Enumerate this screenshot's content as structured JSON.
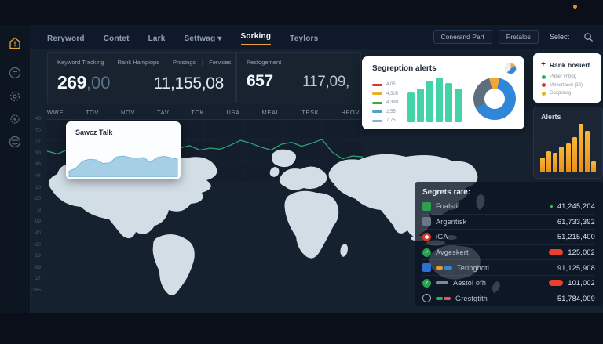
{
  "colors": {
    "accent": "#e8a33b",
    "teal": "#43d3a7",
    "donut_blue": "#2e87d8",
    "donut_gray": "#5f6e7e",
    "donut_orange": "#f2a53a",
    "alert_bar_top": "#f8b83a",
    "alert_bar_bottom": "#e88f16",
    "line_green": "#2ea176",
    "area_fill": "#a5cfe4",
    "area_line": "#7fb9d4",
    "map": "#d9e4ec",
    "red_badge": "#e8402a"
  },
  "topnav": {
    "items": [
      {
        "label": "Reryword"
      },
      {
        "label": "Contet"
      },
      {
        "label": "Lark"
      },
      {
        "label": "Settwag",
        "caret": true
      },
      {
        "label": "Sorking",
        "active": true
      },
      {
        "label": "Teylors"
      }
    ],
    "buttons": [
      "Conerand Part",
      "Pretalos"
    ],
    "select_label": "Select"
  },
  "sidebar": {
    "icons": [
      "home-alert-icon",
      "list-circle-icon",
      "gear-icon",
      "gear-star-icon",
      "globe-icon"
    ]
  },
  "kpi_primary": {
    "tabs": [
      "Keyword Tracking",
      "Rank Hampiops",
      "Prosings",
      "Fervices"
    ],
    "value_main_int": "269",
    "value_main_dec": ",00",
    "value_secondary": "11,155,08"
  },
  "kpi_secondary": {
    "title": "Pesfogement",
    "value_main": "657",
    "value_secondary": "117,09,"
  },
  "region_tabs": [
    "WWE",
    "TOV",
    "NOV",
    "TAV",
    "TOK",
    "USA",
    "MEAL",
    "TESK",
    "HPOV"
  ],
  "y_axis_labels": [
    "40",
    "70",
    "77",
    "99",
    "48",
    "44",
    "10",
    "-20",
    "9",
    "-09",
    "40",
    "-30",
    "19",
    "-99",
    "17",
    "-165"
  ],
  "sawcz_card": {
    "title": "Sawcz Talk"
  },
  "segreption_card": {
    "title": "Segreption alerts",
    "legend": [
      {
        "label": "4,05",
        "color": "#d93a2b"
      },
      {
        "label": "4,305",
        "color": "#e9b021"
      },
      {
        "label": "4,390",
        "color": "#3aa94b"
      },
      {
        "label": "2,55",
        "color": "#4fa3c2"
      },
      {
        "label": "7,75",
        "color": "#86b4d8"
      }
    ]
  },
  "rank_card": {
    "plus": "+",
    "title": "Rank bosiert",
    "legend": [
      {
        "label": "Puber vnbog",
        "color": "#2fae5c"
      },
      {
        "label": "Menertasel (22)",
        "color": "#d93a2b"
      },
      {
        "label": "Gozprinsg",
        "color": "#cfc013"
      }
    ]
  },
  "alerts_card": {
    "title": "Alerts"
  },
  "stats_table": {
    "title": "Segrets rate:",
    "rows": [
      {
        "icon": "flag-green",
        "name": "Foalsti",
        "value": "41,245,204",
        "value_dot": true
      },
      {
        "icon": "flag-gray",
        "name": "Argentisk",
        "value": "61,733,392"
      },
      {
        "icon": "roundel-red",
        "name": "iGA",
        "value": "51,215,400"
      },
      {
        "icon": "check-green",
        "name": "Avgeskert",
        "value": "125,002",
        "badge": true
      },
      {
        "icon": "flag-blue",
        "name": "Teringhdti",
        "value": "91,125,908",
        "bar": [
          [
            "#e89b2e",
            9
          ],
          [
            "#2e87d8",
            11
          ]
        ]
      },
      {
        "icon": "check-green",
        "name": "Aestol ofh",
        "value": "101,002",
        "badge": true,
        "bar": [
          [
            "#7d88a0",
            16
          ]
        ]
      },
      {
        "icon": "circle-outline",
        "name": "Grestgtith",
        "value": "51,784,009",
        "bar": [
          [
            "#2fae5c",
            9
          ],
          [
            "#e05560",
            9
          ]
        ]
      }
    ]
  },
  "chart_data": [
    {
      "id": "main-trend",
      "type": "line",
      "title": "",
      "color": "#2ea176",
      "x": "index 0-31",
      "y_range": [
        0,
        100
      ],
      "grid": true,
      "axis_labels": "hidden",
      "values": [
        52,
        46,
        55,
        50,
        42,
        30,
        26,
        20,
        16,
        24,
        40,
        60,
        66,
        58,
        63,
        54,
        58,
        56,
        64,
        74,
        68,
        60,
        54,
        66,
        70,
        62,
        68,
        76,
        50,
        36,
        42,
        40
      ]
    },
    {
      "id": "sawcz-area",
      "type": "area",
      "title": "Sawcz Talk",
      "color": "#a5cfe4",
      "y_range": [
        0,
        100
      ],
      "values": [
        12,
        22,
        46,
        52,
        50,
        38,
        40,
        60,
        63,
        58,
        56,
        58,
        42,
        58,
        62,
        57,
        52
      ]
    },
    {
      "id": "segreption-bars",
      "type": "bar",
      "color": "#43d3a7",
      "categories": [
        "1",
        "2",
        "3",
        "4",
        "5",
        "6"
      ],
      "values": [
        62,
        70,
        86,
        92,
        80,
        70
      ],
      "y_range": [
        0,
        100
      ]
    },
    {
      "id": "segreption-donut",
      "type": "pie",
      "segments": [
        {
          "label": "orange",
          "value": 8,
          "color": "#f2a53a"
        },
        {
          "label": "blue",
          "value": 64,
          "color": "#2e87d8"
        },
        {
          "label": "gray",
          "value": 28,
          "color": "#5f6e7e"
        }
      ]
    },
    {
      "id": "alerts-bars",
      "type": "bar",
      "title": "Alerts",
      "color_top": "#f8b83a",
      "color_bottom": "#e88f16",
      "categories": [
        "1",
        "2",
        "3",
        "4",
        "5",
        "6",
        "7",
        "8",
        "9"
      ],
      "values": [
        30,
        44,
        40,
        54,
        60,
        72,
        100,
        86,
        22
      ],
      "y_range": [
        0,
        100
      ]
    }
  ]
}
